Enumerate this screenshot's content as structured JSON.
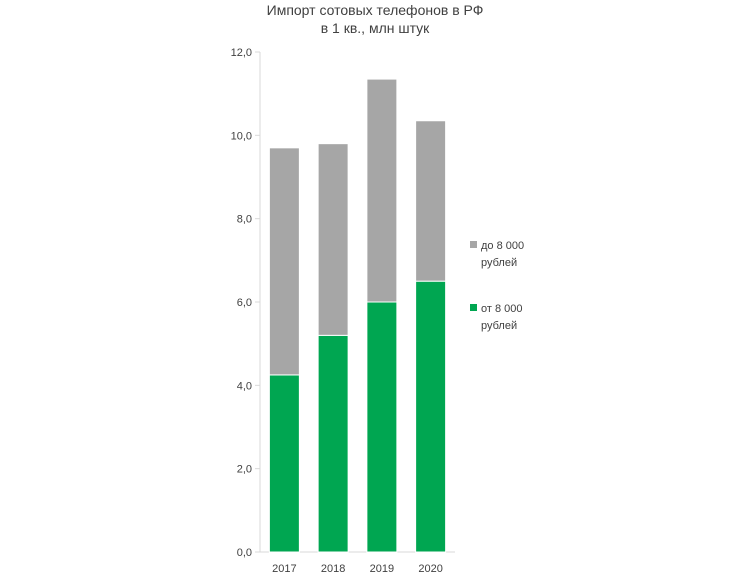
{
  "chart_data": {
    "type": "bar",
    "stacked": true,
    "title": "Импорт сотовых телефонов в РФ",
    "subtitle": "в 1 кв., млн штук",
    "categories": [
      "2017",
      "2018",
      "2019",
      "2020"
    ],
    "series": [
      {
        "name": "от 8 000 рублей",
        "color": "#00a651",
        "values": [
          4.25,
          5.2,
          6.0,
          6.5
        ]
      },
      {
        "name": "до 8 000 рублей",
        "color": "#a6a6a6",
        "values": [
          5.45,
          4.6,
          5.35,
          3.85
        ]
      }
    ],
    "ylim": [
      0,
      12
    ],
    "yticks": [
      "0,0",
      "2,0",
      "4,0",
      "6,0",
      "8,0",
      "10,0",
      "12,0"
    ],
    "grid": false,
    "legend_position": "right"
  }
}
